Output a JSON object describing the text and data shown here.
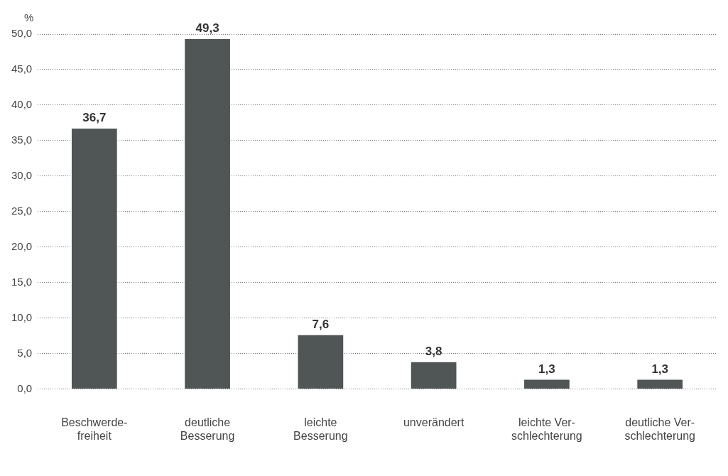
{
  "chart_data": {
    "type": "bar",
    "ylabel": "%",
    "categories": [
      "Beschwerde-\nfreiheit",
      "deutliche\nBesserung",
      "leichte\nBesserung",
      "unverändert",
      "leichte Ver-\nschlechterung",
      "deutliche Ver-\nschlechterung"
    ],
    "values": [
      36.7,
      49.3,
      7.6,
      3.8,
      1.3,
      1.3
    ],
    "color": "#505555",
    "ylim": [
      0,
      50
    ],
    "yticks": [
      {
        "value": 0,
        "label": "0,0"
      },
      {
        "value": 5,
        "label": "5,0"
      },
      {
        "value": 10,
        "label": "10,0"
      },
      {
        "value": 15,
        "label": "15,0"
      },
      {
        "value": 20,
        "label": "20,0"
      },
      {
        "value": 25,
        "label": "25,0"
      },
      {
        "value": 30,
        "label": "30,0"
      },
      {
        "value": 35,
        "label": "35,0"
      },
      {
        "value": 40,
        "label": "40,0"
      },
      {
        "value": 45,
        "label": "45,0"
      },
      {
        "value": 50,
        "label": "50,0"
      }
    ],
    "value_labels": [
      "36,7",
      "49,3",
      "7,6",
      "3,8",
      "1,3",
      "1,3"
    ],
    "grid": "y",
    "legend": false
  }
}
